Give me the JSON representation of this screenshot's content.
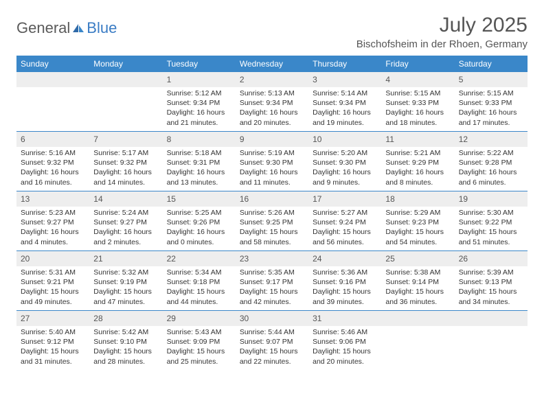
{
  "brand": {
    "part1": "General",
    "part2": "Blue"
  },
  "title": "July 2025",
  "location": "Bischofsheim in der Rhoen, Germany",
  "colors": {
    "header_bg": "#3a87c9",
    "header_text": "#ffffff",
    "daynum_bg": "#eeeeee",
    "text": "#333333",
    "brand_gray": "#5a5a5a",
    "brand_blue": "#3a7cc4",
    "rule": "#3a87c9"
  },
  "day_names": [
    "Sunday",
    "Monday",
    "Tuesday",
    "Wednesday",
    "Thursday",
    "Friday",
    "Saturday"
  ],
  "weeks": [
    [
      null,
      null,
      {
        "n": "1",
        "sr": "Sunrise: 5:12 AM",
        "ss": "Sunset: 9:34 PM",
        "dl": "Daylight: 16 hours and 21 minutes."
      },
      {
        "n": "2",
        "sr": "Sunrise: 5:13 AM",
        "ss": "Sunset: 9:34 PM",
        "dl": "Daylight: 16 hours and 20 minutes."
      },
      {
        "n": "3",
        "sr": "Sunrise: 5:14 AM",
        "ss": "Sunset: 9:34 PM",
        "dl": "Daylight: 16 hours and 19 minutes."
      },
      {
        "n": "4",
        "sr": "Sunrise: 5:15 AM",
        "ss": "Sunset: 9:33 PM",
        "dl": "Daylight: 16 hours and 18 minutes."
      },
      {
        "n": "5",
        "sr": "Sunrise: 5:15 AM",
        "ss": "Sunset: 9:33 PM",
        "dl": "Daylight: 16 hours and 17 minutes."
      }
    ],
    [
      {
        "n": "6",
        "sr": "Sunrise: 5:16 AM",
        "ss": "Sunset: 9:32 PM",
        "dl": "Daylight: 16 hours and 16 minutes."
      },
      {
        "n": "7",
        "sr": "Sunrise: 5:17 AM",
        "ss": "Sunset: 9:32 PM",
        "dl": "Daylight: 16 hours and 14 minutes."
      },
      {
        "n": "8",
        "sr": "Sunrise: 5:18 AM",
        "ss": "Sunset: 9:31 PM",
        "dl": "Daylight: 16 hours and 13 minutes."
      },
      {
        "n": "9",
        "sr": "Sunrise: 5:19 AM",
        "ss": "Sunset: 9:30 PM",
        "dl": "Daylight: 16 hours and 11 minutes."
      },
      {
        "n": "10",
        "sr": "Sunrise: 5:20 AM",
        "ss": "Sunset: 9:30 PM",
        "dl": "Daylight: 16 hours and 9 minutes."
      },
      {
        "n": "11",
        "sr": "Sunrise: 5:21 AM",
        "ss": "Sunset: 9:29 PM",
        "dl": "Daylight: 16 hours and 8 minutes."
      },
      {
        "n": "12",
        "sr": "Sunrise: 5:22 AM",
        "ss": "Sunset: 9:28 PM",
        "dl": "Daylight: 16 hours and 6 minutes."
      }
    ],
    [
      {
        "n": "13",
        "sr": "Sunrise: 5:23 AM",
        "ss": "Sunset: 9:27 PM",
        "dl": "Daylight: 16 hours and 4 minutes."
      },
      {
        "n": "14",
        "sr": "Sunrise: 5:24 AM",
        "ss": "Sunset: 9:27 PM",
        "dl": "Daylight: 16 hours and 2 minutes."
      },
      {
        "n": "15",
        "sr": "Sunrise: 5:25 AM",
        "ss": "Sunset: 9:26 PM",
        "dl": "Daylight: 16 hours and 0 minutes."
      },
      {
        "n": "16",
        "sr": "Sunrise: 5:26 AM",
        "ss": "Sunset: 9:25 PM",
        "dl": "Daylight: 15 hours and 58 minutes."
      },
      {
        "n": "17",
        "sr": "Sunrise: 5:27 AM",
        "ss": "Sunset: 9:24 PM",
        "dl": "Daylight: 15 hours and 56 minutes."
      },
      {
        "n": "18",
        "sr": "Sunrise: 5:29 AM",
        "ss": "Sunset: 9:23 PM",
        "dl": "Daylight: 15 hours and 54 minutes."
      },
      {
        "n": "19",
        "sr": "Sunrise: 5:30 AM",
        "ss": "Sunset: 9:22 PM",
        "dl": "Daylight: 15 hours and 51 minutes."
      }
    ],
    [
      {
        "n": "20",
        "sr": "Sunrise: 5:31 AM",
        "ss": "Sunset: 9:21 PM",
        "dl": "Daylight: 15 hours and 49 minutes."
      },
      {
        "n": "21",
        "sr": "Sunrise: 5:32 AM",
        "ss": "Sunset: 9:19 PM",
        "dl": "Daylight: 15 hours and 47 minutes."
      },
      {
        "n": "22",
        "sr": "Sunrise: 5:34 AM",
        "ss": "Sunset: 9:18 PM",
        "dl": "Daylight: 15 hours and 44 minutes."
      },
      {
        "n": "23",
        "sr": "Sunrise: 5:35 AM",
        "ss": "Sunset: 9:17 PM",
        "dl": "Daylight: 15 hours and 42 minutes."
      },
      {
        "n": "24",
        "sr": "Sunrise: 5:36 AM",
        "ss": "Sunset: 9:16 PM",
        "dl": "Daylight: 15 hours and 39 minutes."
      },
      {
        "n": "25",
        "sr": "Sunrise: 5:38 AM",
        "ss": "Sunset: 9:14 PM",
        "dl": "Daylight: 15 hours and 36 minutes."
      },
      {
        "n": "26",
        "sr": "Sunrise: 5:39 AM",
        "ss": "Sunset: 9:13 PM",
        "dl": "Daylight: 15 hours and 34 minutes."
      }
    ],
    [
      {
        "n": "27",
        "sr": "Sunrise: 5:40 AM",
        "ss": "Sunset: 9:12 PM",
        "dl": "Daylight: 15 hours and 31 minutes."
      },
      {
        "n": "28",
        "sr": "Sunrise: 5:42 AM",
        "ss": "Sunset: 9:10 PM",
        "dl": "Daylight: 15 hours and 28 minutes."
      },
      {
        "n": "29",
        "sr": "Sunrise: 5:43 AM",
        "ss": "Sunset: 9:09 PM",
        "dl": "Daylight: 15 hours and 25 minutes."
      },
      {
        "n": "30",
        "sr": "Sunrise: 5:44 AM",
        "ss": "Sunset: 9:07 PM",
        "dl": "Daylight: 15 hours and 22 minutes."
      },
      {
        "n": "31",
        "sr": "Sunrise: 5:46 AM",
        "ss": "Sunset: 9:06 PM",
        "dl": "Daylight: 15 hours and 20 minutes."
      },
      null,
      null
    ]
  ]
}
